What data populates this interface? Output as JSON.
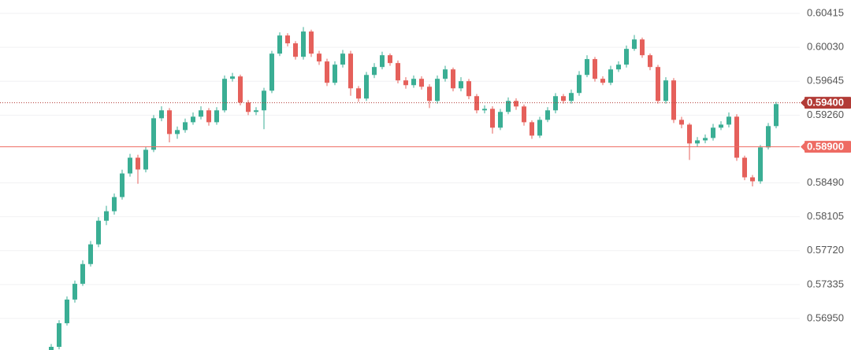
{
  "chart_data": {
    "type": "candlestick",
    "ylim": [
      0.56592,
      0.60567
    ],
    "yticks": [
      0.60415,
      {
        "value": 0.6003,
        "label": "0.60030"
      },
      0.59645,
      {
        "value": 0.5926,
        "label": "0.59260"
      },
      {
        "value": 0.5849,
        "label": "0.58490"
      },
      0.58105,
      {
        "value": 0.5772,
        "label": "0.57720"
      },
      0.57335,
      {
        "value": 0.5695,
        "label": "0.56950"
      }
    ],
    "grid": true,
    "up_color": "#3aae94",
    "down_color": "#e5605b",
    "price_lines": [
      {
        "value": 0.594,
        "label": "0.59400",
        "style": "dotted",
        "color": "#b23b36"
      },
      {
        "value": 0.589,
        "label": "0.58900",
        "style": "solid",
        "color": "#ee6b63"
      }
    ],
    "open": [
      0.5655,
      0.56628,
      0.56896,
      0.57165,
      0.57344,
      0.57568,
      0.57792,
      0.5806,
      0.58168,
      0.58329,
      0.58597,
      0.58776,
      0.58642,
      0.58866,
      0.59224,
      0.59314,
      0.59045,
      0.5909,
      0.59179,
      0.59242,
      0.59314,
      0.59179,
      0.59314,
      0.59672,
      0.59699,
      0.59403,
      0.59296,
      0.59314,
      0.59537,
      0.59958,
      0.60164,
      0.60075,
      0.59922,
      0.60209,
      0.59958,
      0.59869,
      0.59627,
      0.59833,
      0.59958,
      0.59564,
      0.59448,
      0.59716,
      0.59806,
      0.5994,
      0.59851,
      0.59654,
      0.596,
      0.59672,
      0.59582,
      0.59421,
      0.59672,
      0.59779,
      0.59564,
      0.59645,
      0.59475,
      0.59314,
      0.59331,
      0.59117,
      0.59296,
      0.59421,
      0.59358,
      0.59179,
      0.59027,
      0.59206,
      0.59314,
      0.59475,
      0.59421,
      0.59511,
      0.59716,
      0.59896,
      0.59672,
      0.59627,
      0.59779,
      0.59833,
      0.60012,
      0.60119,
      0.5994,
      0.59806,
      0.59421,
      0.59654,
      0.59206,
      0.59152,
      0.58938,
      0.58973,
      0.59,
      0.59117,
      0.59152,
      0.59242,
      0.58776,
      0.58553,
      0.58508,
      0.58893,
      0.59135
    ],
    "high": [
      0.5666,
      0.5693,
      0.572,
      0.5738,
      0.5761,
      0.5783,
      0.581,
      0.5823,
      0.5837,
      0.5864,
      0.5882,
      0.5881,
      0.589,
      0.5926,
      0.5936,
      0.5934,
      0.5913,
      0.5922,
      0.5929,
      0.5936,
      0.5934,
      0.5935,
      0.5971,
      0.5974,
      0.5972,
      0.5943,
      0.5935,
      0.5957,
      0.5999,
      0.602,
      0.6019,
      0.601,
      0.6026,
      0.6023,
      0.5999,
      0.599,
      0.5987,
      0.6,
      0.5999,
      0.5959,
      0.5975,
      0.5985,
      0.5998,
      0.5996,
      0.5988,
      0.5969,
      0.5971,
      0.597,
      0.5961,
      0.5971,
      0.5982,
      0.598,
      0.5969,
      0.5967,
      0.595,
      0.5937,
      0.5936,
      0.5933,
      0.5946,
      0.5945,
      0.5938,
      0.592,
      0.5924,
      0.5935,
      0.5951,
      0.595,
      0.5955,
      0.5976,
      0.5994,
      0.5992,
      0.597,
      0.5982,
      0.5987,
      0.6005,
      0.6017,
      0.6014,
      0.5996,
      0.5983,
      0.5969,
      0.5968,
      0.5924,
      0.5917,
      0.5901,
      0.5904,
      0.5916,
      0.5919,
      0.5929,
      0.5927,
      0.588,
      0.5858,
      0.5892,
      0.5917,
      0.5941
    ],
    "low": [
      0.5652,
      0.566,
      0.5687,
      0.5713,
      0.5732,
      0.5754,
      0.5776,
      0.5801,
      0.5813,
      0.583,
      0.5856,
      0.5848,
      0.5861,
      0.5884,
      0.5919,
      0.5895,
      0.5899,
      0.5906,
      0.5915,
      0.5921,
      0.5914,
      0.5915,
      0.5929,
      0.5964,
      0.5937,
      0.5926,
      0.5926,
      0.591,
      0.5951,
      0.5993,
      0.6004,
      0.5989,
      0.5989,
      0.5992,
      0.5983,
      0.5959,
      0.596,
      0.598,
      0.5948,
      0.5941,
      0.5942,
      0.5968,
      0.5978,
      0.5982,
      0.5962,
      0.5956,
      0.5957,
      0.5955,
      0.5934,
      0.5939,
      0.5964,
      0.5953,
      0.5953,
      0.5944,
      0.5928,
      0.5928,
      0.5905,
      0.5909,
      0.5927,
      0.5932,
      0.5914,
      0.5899,
      0.59,
      0.5918,
      0.5928,
      0.5939,
      0.5939,
      0.5948,
      0.5969,
      0.5964,
      0.596,
      0.596,
      0.5975,
      0.598,
      0.5999,
      0.5991,
      0.5977,
      0.5939,
      0.5939,
      0.5917,
      0.5911,
      0.5875,
      0.589,
      0.5894,
      0.5897,
      0.5909,
      0.5912,
      0.5874,
      0.5852,
      0.5845,
      0.5848,
      0.5887,
      0.5911
    ],
    "close": [
      0.56628,
      0.56896,
      0.57165,
      0.57344,
      0.57568,
      0.57792,
      0.5806,
      0.58168,
      0.58329,
      0.58597,
      0.58776,
      0.58642,
      0.58866,
      0.59224,
      0.59314,
      0.59045,
      0.5909,
      0.59179,
      0.59242,
      0.59314,
      0.59179,
      0.59314,
      0.59672,
      0.59699,
      0.59403,
      0.59296,
      0.59314,
      0.59537,
      0.59958,
      0.60164,
      0.60075,
      0.59922,
      0.60209,
      0.59958,
      0.59869,
      0.59627,
      0.59833,
      0.59958,
      0.59564,
      0.59448,
      0.59716,
      0.59806,
      0.5994,
      0.59851,
      0.59654,
      0.596,
      0.59672,
      0.59582,
      0.59421,
      0.59672,
      0.59779,
      0.59564,
      0.59645,
      0.59475,
      0.59314,
      0.59331,
      0.59117,
      0.59296,
      0.59421,
      0.59358,
      0.59179,
      0.59027,
      0.59206,
      0.59314,
      0.59475,
      0.59421,
      0.59511,
      0.59716,
      0.59896,
      0.59672,
      0.59627,
      0.59779,
      0.59833,
      0.60012,
      0.60119,
      0.5994,
      0.59806,
      0.59421,
      0.59654,
      0.59206,
      0.59152,
      0.58938,
      0.58973,
      0.59,
      0.59117,
      0.59152,
      0.59242,
      0.58776,
      0.58553,
      0.58508,
      0.58893,
      0.59135,
      0.59385
    ]
  }
}
